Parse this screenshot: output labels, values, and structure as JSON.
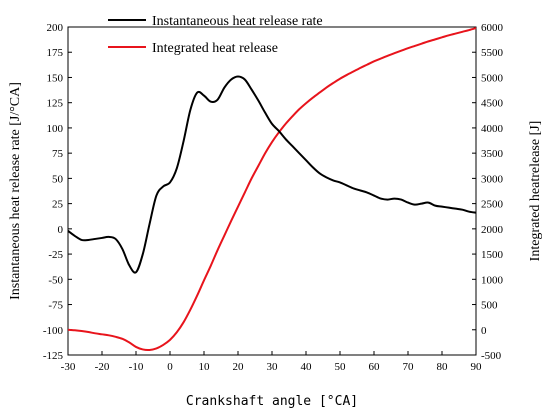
{
  "chart_data": {
    "type": "line",
    "xlabel": "Crankshaft angle [°CA]",
    "ylabel_left": "Instantaneous heat release rate [J/°CA]",
    "ylabel_right": "Integrated heatrelease [J]",
    "xlim": [
      -30,
      90
    ],
    "ylim_left": [
      -125,
      200
    ],
    "ylim_right": [
      -500,
      6000
    ],
    "x_ticks": [
      -30,
      -20,
      -10,
      0,
      10,
      20,
      30,
      40,
      50,
      60,
      70,
      80,
      90
    ],
    "y_left_ticks": [
      -125,
      -100,
      -75,
      -50,
      -25,
      0,
      25,
      50,
      75,
      100,
      125,
      150,
      175,
      200
    ],
    "y_right_ticks": [
      -500,
      0,
      500,
      1000,
      1500,
      2000,
      2500,
      3000,
      3500,
      4000,
      4500,
      5000,
      5500,
      6000
    ],
    "grid": false,
    "legend_position": "top-center",
    "series": [
      {
        "name": "Instantaneous heat release rate",
        "axis": "left",
        "color": "#000000",
        "x": [
          -30,
          -28,
          -26,
          -24,
          -22,
          -20,
          -18,
          -16,
          -14,
          -12,
          -10,
          -8,
          -6,
          -4,
          -2,
          0,
          2,
          4,
          6,
          8,
          10,
          12,
          14,
          16,
          18,
          20,
          22,
          24,
          26,
          28,
          30,
          32,
          34,
          36,
          38,
          40,
          42,
          44,
          46,
          48,
          50,
          52,
          54,
          56,
          58,
          60,
          62,
          64,
          66,
          68,
          70,
          72,
          74,
          76,
          78,
          80,
          82,
          84,
          86,
          88,
          90
        ],
        "y": [
          -2,
          -7,
          -11,
          -11,
          -10,
          -9,
          -8,
          -10,
          -20,
          -36,
          -43,
          -25,
          5,
          33,
          42,
          46,
          60,
          87,
          118,
          135,
          132,
          126,
          128,
          140,
          148,
          151,
          148,
          138,
          127,
          115,
          104,
          97,
          89,
          82,
          75,
          68,
          61,
          55,
          51,
          48,
          46,
          43,
          40,
          38,
          36,
          33,
          30,
          29,
          30,
          29,
          26,
          24,
          25,
          26,
          23,
          22,
          21,
          20,
          19,
          17,
          16
        ]
      },
      {
        "name": "Integrated heat release",
        "axis": "right",
        "color": "#e8141c",
        "x": [
          -30,
          -28,
          -26,
          -24,
          -22,
          -20,
          -18,
          -16,
          -14,
          -12,
          -10,
          -8,
          -6,
          -4,
          -2,
          0,
          2,
          4,
          6,
          8,
          10,
          12,
          14,
          16,
          18,
          20,
          22,
          24,
          26,
          28,
          30,
          32,
          34,
          36,
          38,
          40,
          42,
          44,
          46,
          48,
          50,
          52,
          54,
          56,
          58,
          60,
          62,
          64,
          66,
          68,
          70,
          72,
          74,
          76,
          78,
          80,
          82,
          84,
          86,
          88,
          90
        ],
        "y": [
          0,
          -10,
          -25,
          -45,
          -70,
          -90,
          -110,
          -140,
          -180,
          -250,
          -340,
          -390,
          -400,
          -370,
          -300,
          -200,
          -50,
          150,
          400,
          680,
          980,
          1270,
          1580,
          1870,
          2160,
          2440,
          2720,
          3000,
          3250,
          3500,
          3720,
          3910,
          4080,
          4230,
          4370,
          4490,
          4600,
          4700,
          4800,
          4890,
          4975,
          5050,
          5120,
          5190,
          5255,
          5320,
          5375,
          5430,
          5480,
          5530,
          5580,
          5625,
          5670,
          5715,
          5755,
          5795,
          5835,
          5870,
          5905,
          5940,
          5980
        ]
      }
    ]
  }
}
